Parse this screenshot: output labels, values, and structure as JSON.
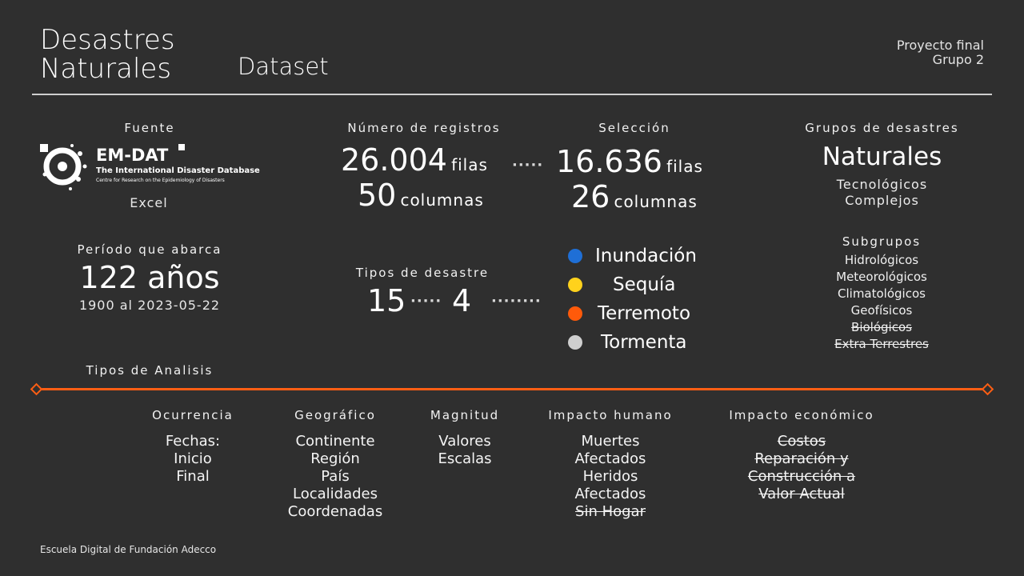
{
  "header": {
    "title_line1": "Desastres",
    "title_line2": "Naturales",
    "subtitle": "Dataset",
    "project_line1": "Proyecto final",
    "project_line2": "Grupo 2"
  },
  "source": {
    "label": "Fuente",
    "logo_name": "EM-DAT",
    "logo_sub1": "The International Disaster Database",
    "logo_sub2": "Centre for Research on the Epidemiology of Disasters",
    "format": "Excel"
  },
  "records": {
    "label": "Número de registros",
    "rows_value": "26.004",
    "rows_unit": "filas",
    "cols_value": "50",
    "cols_unit": "columnas",
    "connector": "·····"
  },
  "selection": {
    "label": "Selección",
    "rows_value": "16.636",
    "rows_unit": "filas",
    "cols_value": "26",
    "cols_unit": "columnas"
  },
  "groups": {
    "label": "Grupos de desastres",
    "main": "Naturales",
    "others": [
      "Tecnológicos",
      "Complejos"
    ]
  },
  "period": {
    "label": "Período que abarca",
    "value": "122 años",
    "range": "1900 al 2023-05-22"
  },
  "types": {
    "label": "Tipos de desastre",
    "total": "15",
    "connector1": "·····",
    "selected": "4",
    "connector2": "········"
  },
  "legend": [
    {
      "label": "Inundación",
      "color": "#1f6fd6"
    },
    {
      "label": "Sequía",
      "color": "#ffd21c"
    },
    {
      "label": "Terremoto",
      "color": "#ff5a0a"
    },
    {
      "label": "Tormenta",
      "color": "#cfcfcf"
    }
  ],
  "subgroups": {
    "label": "Subgrupos",
    "items": [
      {
        "text": "Hidrológicos",
        "struck": false
      },
      {
        "text": "Meteorológicos",
        "struck": false
      },
      {
        "text": "Climatológicos",
        "struck": false
      },
      {
        "text": "Geofísicos",
        "struck": false
      },
      {
        "text": "Biológicos",
        "struck": true
      },
      {
        "text": "Extra Terrestres",
        "struck": true
      }
    ]
  },
  "analysis": {
    "label": "Tipos de Analisis",
    "accent_color": "#ff5e14",
    "columns": [
      {
        "title": "Ocurrencia",
        "items": [
          "Fechas:",
          "Inicio",
          "Final"
        ],
        "struck_from": 99
      },
      {
        "title": "Geográfico",
        "items": [
          "Continente",
          "Región",
          "País",
          "Localidades",
          "Coordenadas"
        ],
        "struck_from": 99
      },
      {
        "title": "Magnitud",
        "items": [
          "Valores",
          "Escalas"
        ],
        "struck_from": 99
      },
      {
        "title": "Impacto humano",
        "items": [
          "Muertes",
          "Afectados",
          "Heridos",
          "Afectados",
          "Sin Hogar"
        ],
        "struck_from": 4
      },
      {
        "title": "Impacto económico",
        "items": [
          "Costos",
          "Reparación y",
          "Construcción a",
          "Valor Actual"
        ],
        "struck_from": 0
      }
    ]
  },
  "footer": {
    "text": "Escuela Digital de Fundación Adecco"
  }
}
